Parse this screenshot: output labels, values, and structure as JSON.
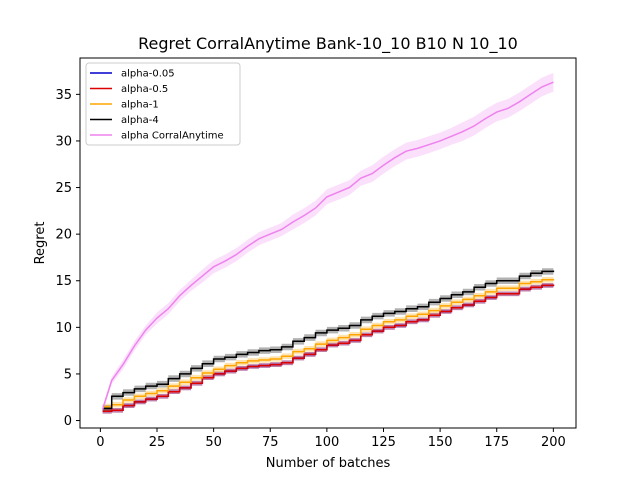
{
  "chart_data": {
    "type": "line",
    "title": "Regret CorralAnytime Bank-10_10 B10 N 10_10",
    "xlabel": "Number of batches",
    "ylabel": "Regret",
    "xlim": [
      -9,
      210
    ],
    "ylim": [
      -0.8,
      38.9
    ],
    "xticks": [
      0,
      25,
      50,
      75,
      100,
      125,
      150,
      175,
      200
    ],
    "yticks": [
      0,
      5,
      10,
      15,
      20,
      25,
      30,
      35
    ],
    "grid": false,
    "legend_position": "top-left",
    "x": [
      1,
      5,
      10,
      15,
      20,
      25,
      30,
      35,
      40,
      45,
      50,
      55,
      60,
      65,
      70,
      75,
      80,
      85,
      90,
      95,
      100,
      105,
      110,
      115,
      120,
      125,
      130,
      135,
      140,
      145,
      150,
      155,
      160,
      165,
      170,
      175,
      180,
      185,
      190,
      195,
      200
    ],
    "series": [
      {
        "name": "alpha-0.05",
        "color": "#0000cc",
        "band": 0.25,
        "values": [
          1.0,
          1.1,
          1.6,
          2.0,
          2.3,
          2.6,
          3.1,
          3.5,
          4.0,
          4.6,
          5.0,
          5.3,
          5.6,
          5.8,
          5.9,
          6.0,
          6.2,
          6.7,
          7.1,
          7.6,
          8.1,
          8.3,
          8.6,
          9.2,
          9.6,
          10.0,
          10.2,
          10.6,
          10.8,
          11.3,
          11.7,
          12.1,
          12.4,
          12.8,
          13.2,
          13.6,
          13.6,
          14.1,
          14.3,
          14.5,
          14.6
        ]
      },
      {
        "name": "alpha-0.5",
        "color": "#dd0000",
        "band": 0.25,
        "values": [
          1.0,
          1.1,
          1.6,
          2.0,
          2.3,
          2.6,
          3.1,
          3.5,
          4.0,
          4.6,
          5.0,
          5.3,
          5.6,
          5.8,
          5.9,
          6.0,
          6.2,
          6.7,
          7.1,
          7.6,
          8.1,
          8.3,
          8.6,
          9.2,
          9.6,
          10.0,
          10.2,
          10.6,
          10.8,
          11.3,
          11.7,
          12.1,
          12.4,
          12.8,
          13.2,
          13.6,
          13.6,
          14.1,
          14.3,
          14.5,
          14.6
        ]
      },
      {
        "name": "alpha-1",
        "color": "#ffa500",
        "band": 0.3,
        "values": [
          1.5,
          1.7,
          2.2,
          2.6,
          2.9,
          3.2,
          3.7,
          4.1,
          4.6,
          5.1,
          5.5,
          5.9,
          6.2,
          6.4,
          6.5,
          6.6,
          6.9,
          7.4,
          7.7,
          8.2,
          8.6,
          8.9,
          9.2,
          9.8,
          10.2,
          10.6,
          10.8,
          11.2,
          11.4,
          11.8,
          12.3,
          12.7,
          13.0,
          13.4,
          13.8,
          14.2,
          14.2,
          14.7,
          14.9,
          15.1,
          15.2
        ]
      },
      {
        "name": "alpha-4",
        "color": "#000000",
        "band": 0.35,
        "values": [
          1.3,
          2.6,
          3.0,
          3.4,
          3.7,
          3.9,
          4.5,
          5.0,
          5.6,
          6.1,
          6.6,
          6.8,
          7.1,
          7.3,
          7.5,
          7.6,
          7.9,
          8.5,
          8.9,
          9.4,
          9.7,
          9.9,
          10.2,
          10.8,
          11.2,
          11.5,
          11.7,
          12.0,
          12.2,
          12.7,
          13.1,
          13.5,
          13.8,
          14.3,
          14.7,
          15.0,
          15.0,
          15.5,
          15.8,
          16.0,
          16.1
        ]
      },
      {
        "name": "alpha CorralAnytime",
        "color": "#ee82ee",
        "band_values": [
          0.3,
          0.4,
          0.5,
          0.5,
          0.5,
          0.6,
          0.6,
          0.6,
          0.6,
          0.7,
          0.7,
          0.7,
          0.7,
          0.7,
          0.7,
          0.7,
          0.7,
          0.8,
          0.8,
          0.8,
          0.8,
          0.8,
          0.8,
          0.8,
          0.9,
          0.9,
          0.9,
          0.9,
          0.9,
          0.9,
          0.9,
          0.9,
          1.0,
          1.0,
          1.0,
          1.0,
          1.0,
          1.0,
          1.0,
          1.0,
          1.0
        ],
        "values": [
          1.2,
          4.3,
          6.0,
          8.0,
          9.7,
          11.0,
          12.0,
          13.4,
          14.5,
          15.5,
          16.5,
          17.1,
          17.8,
          18.7,
          19.5,
          20.0,
          20.5,
          21.3,
          22.0,
          22.8,
          24.0,
          24.5,
          25.0,
          26.0,
          26.5,
          27.4,
          28.2,
          28.9,
          29.2,
          29.6,
          30.0,
          30.5,
          31.0,
          31.6,
          32.4,
          33.1,
          33.5,
          34.2,
          35.0,
          35.8,
          36.3
        ]
      }
    ]
  }
}
